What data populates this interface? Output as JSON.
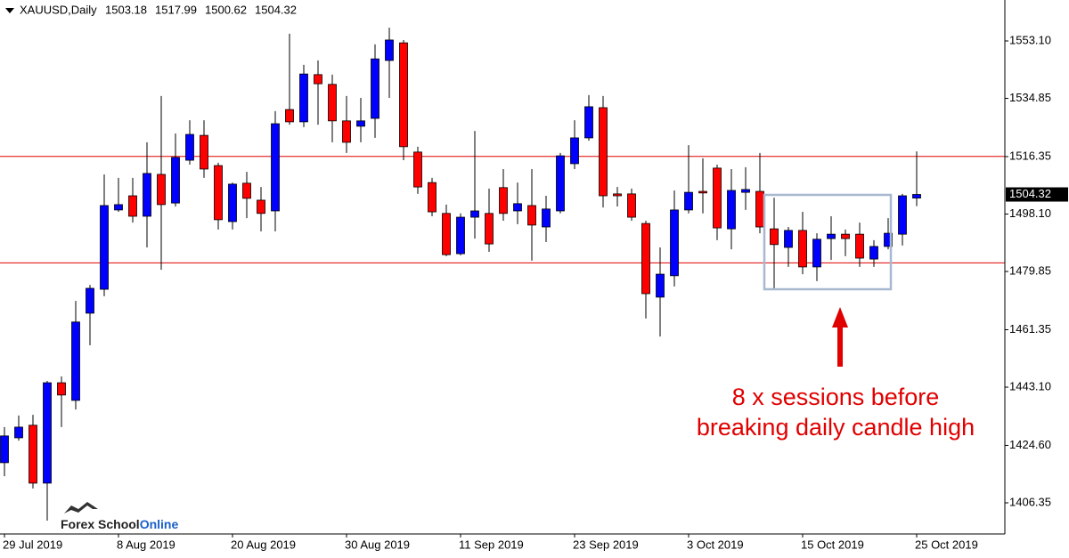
{
  "chart_data": {
    "type": "candlestick",
    "title": "XAUUSD,Daily",
    "categories": [
      "29 Jul 2019",
      null,
      null,
      null,
      null,
      null,
      null,
      null,
      "8 Aug 2019",
      null,
      null,
      null,
      null,
      null,
      null,
      null,
      "20 Aug 2019",
      null,
      null,
      null,
      null,
      null,
      null,
      null,
      "30 Aug 2019",
      null,
      null,
      null,
      null,
      null,
      null,
      null,
      "11 Sep 2019",
      null,
      null,
      null,
      null,
      null,
      null,
      null,
      "23 Sep 2019",
      null,
      null,
      null,
      null,
      null,
      null,
      null,
      "3 Oct 2019",
      null,
      null,
      null,
      null,
      null,
      null,
      null,
      "15 Oct 2019",
      null,
      null,
      null,
      null,
      null,
      null,
      null,
      "25 Oct 2019"
    ],
    "open": [
      1419.1,
      1427.0,
      1431.0,
      1412.6,
      1444.5,
      1438.9,
      1466.6,
      1474.2,
      1499.4,
      1503.9,
      1497.4,
      1510.7,
      1501.6,
      1515.2,
      1523.1,
      1513.5,
      1495.7,
      1507.9,
      1502.5,
      1499.1,
      1531.3,
      1527.4,
      1542.4,
      1539.3,
      1527.7,
      1526.0,
      1528.5,
      1546.9,
      1552.5,
      1517.8,
      1508.1,
      1498.3,
      1485.5,
      1497.1,
      1498.3,
      1506.5,
      1499.1,
      1500.8,
      1494.0,
      1499.1,
      1514.1,
      1522.3,
      1531.9,
      1504.5,
      1504.5,
      1495.1,
      1471.7,
      1478.5,
      1499.4,
      1505.3,
      1512.7,
      1493.4,
      1505.0,
      1505.3,
      1493.4,
      1487.5,
      1492.9,
      1481.3,
      1490.3,
      1491.7,
      1491.7,
      1483.8,
      1487.8,
      1491.7,
      1503.18
    ],
    "high": [
      1430.4,
      1434.1,
      1434.3,
      1445.1,
      1446.5,
      1470.5,
      1475.6,
      1510.7,
      1509.6,
      1509.6,
      1520.9,
      1535.6,
      1523.7,
      1527.9,
      1527.9,
      1514.4,
      1508.1,
      1511.5,
      1506.7,
      1530.8,
      1555.4,
      1545.5,
      1546.9,
      1542.4,
      1535.6,
      1535.0,
      1552.0,
      1557.3,
      1553.4,
      1519.5,
      1509.6,
      1501.1,
      1498.3,
      1524.5,
      1506.2,
      1512.4,
      1508.1,
      1512.4,
      1503.9,
      1517.5,
      1527.9,
      1535.9,
      1535.6,
      1506.7,
      1506.2,
      1496.0,
      1487.5,
      1505.6,
      1520.0,
      1515.8,
      1513.8,
      1512.4,
      1513.0,
      1517.5,
      1503.3,
      1494.0,
      1498.8,
      1492.0,
      1497.4,
      1493.2,
      1495.4,
      1489.8,
      1496.8,
      1504.5,
      1517.99
    ],
    "low": [
      1414.8,
      1426.1,
      1410.9,
      1400.7,
      1430.4,
      1436.0,
      1456.4,
      1472.0,
      1498.8,
      1495.4,
      1487.5,
      1480.4,
      1500.5,
      1513.8,
      1509.6,
      1493.2,
      1493.2,
      1496.8,
      1492.6,
      1492.6,
      1526.5,
      1525.7,
      1526.5,
      1520.9,
      1517.5,
      1520.9,
      1522.3,
      1535.0,
      1515.2,
      1504.5,
      1497.4,
      1484.7,
      1485.0,
      1490.3,
      1486.1,
      1496.0,
      1494.9,
      1483.3,
      1489.2,
      1498.3,
      1512.4,
      1521.4,
      1500.2,
      1500.5,
      1496.0,
      1464.9,
      1459.2,
      1475.1,
      1498.3,
      1498.3,
      1489.8,
      1486.9,
      1499.4,
      1492.0,
      1474.2,
      1481.3,
      1479.0,
      1476.8,
      1483.5,
      1484.7,
      1481.3,
      1481.3,
      1486.9,
      1488.1,
      1500.62
    ],
    "close": [
      1427.6,
      1430.4,
      1412.6,
      1444.5,
      1440.6,
      1463.8,
      1474.5,
      1500.8,
      1501.1,
      1497.4,
      1511.0,
      1501.1,
      1516.1,
      1523.4,
      1512.4,
      1496.3,
      1507.6,
      1503.1,
      1498.3,
      1526.8,
      1527.4,
      1542.6,
      1539.5,
      1527.7,
      1520.9,
      1527.7,
      1547.4,
      1553.4,
      1519.5,
      1506.7,
      1498.8,
      1485.2,
      1497.1,
      1499.1,
      1488.6,
      1498.3,
      1501.4,
      1494.6,
      1499.7,
      1516.6,
      1522.3,
      1532.2,
      1503.9,
      1503.9,
      1497.1,
      1472.8,
      1479.0,
      1499.4,
      1505.0,
      1504.8,
      1493.7,
      1505.6,
      1505.9,
      1494.0,
      1488.4,
      1492.9,
      1481.3,
      1490.1,
      1491.7,
      1490.3,
      1484.1,
      1487.8,
      1492.0,
      1503.9,
      1504.32
    ],
    "up_color": "#0000ff",
    "down_color": "#ff0000",
    "levels": [
      1516.4,
      1482.6
    ],
    "level_color": "#e00000",
    "ylim": [
      1396.45,
      1566.11
    ],
    "yticks": [
      {
        "value": 1406.35,
        "label": "1406.35"
      },
      {
        "value": 1424.6,
        "label": "1424.60"
      },
      {
        "value": 1443.1,
        "label": "1443.10"
      },
      1461.35,
      1479.85,
      {
        "value": 1498.1,
        "label": "1498.10"
      },
      1516.35,
      1534.85,
      {
        "value": 1553.1,
        "label": "1553.10"
      }
    ],
    "annotation": [
      "8 x sessions before",
      "breaking daily candle high"
    ],
    "logo": [
      "Forex School",
      "Online"
    ]
  }
}
